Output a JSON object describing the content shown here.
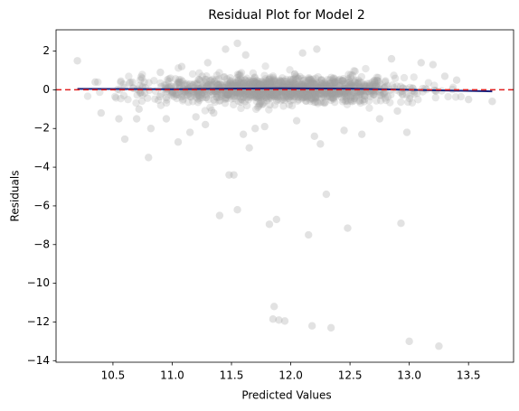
{
  "chart_data": {
    "type": "scatter",
    "title": "Residual Plot for Model 2",
    "xlabel": "Predicted Values",
    "ylabel": "Residuals",
    "xlim": [
      10.02,
      13.88
    ],
    "ylim": [
      -14.08,
      3.1
    ],
    "xticks": [
      10.5,
      11.0,
      11.5,
      12.0,
      12.5,
      13.0,
      13.5
    ],
    "xtick_labels": [
      "10.5",
      "11.0",
      "11.5",
      "12.0",
      "12.5",
      "13.0",
      "13.5"
    ],
    "yticks": [
      2,
      0,
      -2,
      -4,
      -6,
      -8,
      -10,
      -12,
      -14
    ],
    "ytick_labels": [
      "2",
      "0",
      "−2",
      "−4",
      "−6",
      "−8",
      "−10",
      "−12",
      "−14"
    ],
    "grid": false,
    "point_color": "#a0a0a0",
    "point_opacity": 0.25,
    "reference_line": {
      "y": 0,
      "style": "dashed",
      "color": "#e01e1e"
    },
    "trend_line": {
      "color": "#1a237e",
      "x": [
        10.2,
        11.0,
        11.9,
        12.5,
        13.0,
        13.7
      ],
      "y": [
        0.05,
        0.03,
        0.08,
        0.06,
        0.0,
        -0.08
      ]
    },
    "cloud": {
      "x_range": [
        10.2,
        13.5
      ],
      "center_x": 11.9,
      "x_spread": 0.55,
      "y_spread": 0.32,
      "count": 1400
    },
    "outliers": [
      [
        10.2,
        1.5
      ],
      [
        10.35,
        0.4
      ],
      [
        10.4,
        -1.2
      ],
      [
        10.55,
        -1.5
      ],
      [
        10.6,
        -2.55
      ],
      [
        10.7,
        -1.5
      ],
      [
        10.72,
        -1.0
      ],
      [
        10.8,
        -3.5
      ],
      [
        10.82,
        -2.0
      ],
      [
        10.95,
        -1.5
      ],
      [
        11.05,
        -2.7
      ],
      [
        11.15,
        -2.2
      ],
      [
        11.2,
        -1.4
      ],
      [
        11.28,
        -1.8
      ],
      [
        11.3,
        1.4
      ],
      [
        11.4,
        -6.5
      ],
      [
        11.45,
        2.1
      ],
      [
        11.48,
        -4.4
      ],
      [
        11.52,
        -4.4
      ],
      [
        11.55,
        2.4
      ],
      [
        11.55,
        -6.2
      ],
      [
        11.6,
        -2.3
      ],
      [
        11.65,
        -3.0
      ],
      [
        11.7,
        -2.0
      ],
      [
        11.78,
        -1.9
      ],
      [
        11.82,
        -6.95
      ],
      [
        11.88,
        -6.7
      ],
      [
        11.86,
        -11.2
      ],
      [
        11.85,
        -11.85
      ],
      [
        11.9,
        -11.9
      ],
      [
        11.95,
        -11.95
      ],
      [
        12.1,
        1.9
      ],
      [
        12.15,
        -7.5
      ],
      [
        12.18,
        -12.2
      ],
      [
        12.2,
        -2.4
      ],
      [
        12.22,
        2.1
      ],
      [
        12.25,
        -2.8
      ],
      [
        12.3,
        -5.4
      ],
      [
        12.34,
        -12.3
      ],
      [
        12.45,
        -2.1
      ],
      [
        12.48,
        -7.15
      ],
      [
        12.6,
        -2.3
      ],
      [
        12.75,
        -1.5
      ],
      [
        12.85,
        1.6
      ],
      [
        12.93,
        -6.9
      ],
      [
        12.98,
        -2.2
      ],
      [
        13.0,
        -13.0
      ],
      [
        13.1,
        1.4
      ],
      [
        13.2,
        1.3
      ],
      [
        13.25,
        -13.25
      ],
      [
        13.3,
        0.7
      ],
      [
        13.4,
        0.5
      ],
      [
        13.5,
        -0.5
      ],
      [
        13.7,
        -0.6
      ],
      [
        11.35,
        -1.2
      ],
      [
        12.05,
        -1.6
      ],
      [
        11.08,
        1.2
      ],
      [
        12.9,
        -1.1
      ],
      [
        10.9,
        0.9
      ],
      [
        11.62,
        1.8
      ]
    ]
  }
}
